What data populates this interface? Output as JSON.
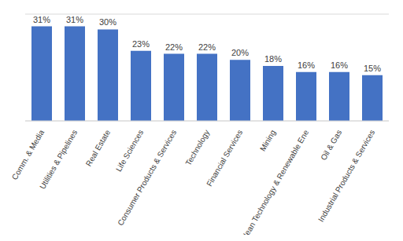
{
  "chart_data": {
    "type": "bar",
    "categories": [
      "Comm. & Media",
      "Utilities & Pipelines",
      "Real Estate",
      "Life Sciences",
      "Consumer Products & Services",
      "Technology",
      "Financial Services",
      "Mining",
      "Clean Technology & Renewable Ene",
      "Oil & Gas",
      "Industrial Products & Services"
    ],
    "values": [
      31,
      31,
      30,
      23,
      22,
      22,
      20,
      18,
      16,
      16,
      15
    ],
    "value_labels": [
      "31%",
      "31%",
      "30%",
      "23%",
      "22%",
      "22%",
      "20%",
      "18%",
      "16%",
      "16%",
      "15%"
    ],
    "color": "#4472c4",
    "ylim": [
      0,
      35
    ],
    "yticks": [
      0,
      5,
      10,
      15,
      20,
      25,
      30,
      35
    ],
    "grid": true,
    "data_labels": true,
    "tick_labels": "x"
  }
}
